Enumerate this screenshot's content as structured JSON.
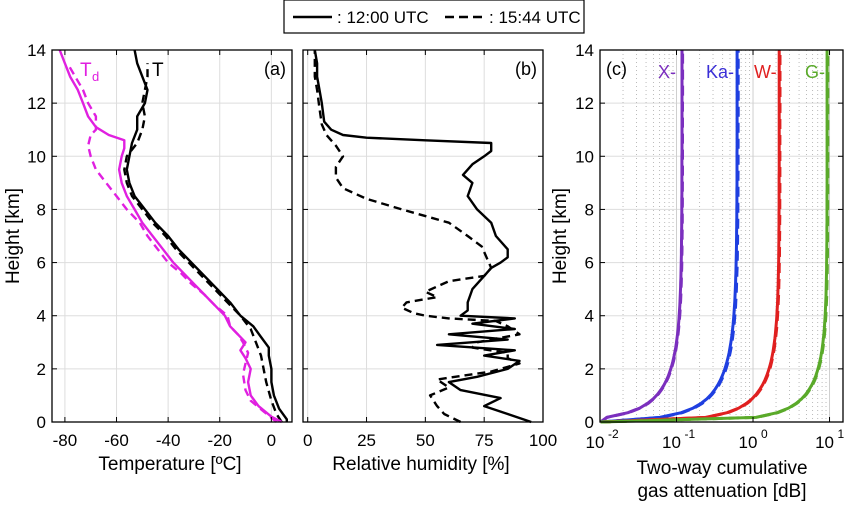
{
  "legend": {
    "solid_label": ": 12:00 UTC",
    "dashed_label": ": 15:44 UTC"
  },
  "chart_data": [
    {
      "type": "line",
      "panel_label": "(a)",
      "xlabel": "Temperature [ºC]",
      "ylabel": "Height [km]",
      "xlim": [
        -85,
        8
      ],
      "ylim": [
        0,
        14
      ],
      "x_ticks": [
        -80,
        -60,
        -40,
        -20,
        0
      ],
      "x_tick_labels": [
        "-80",
        "-60",
        "-40",
        "-20",
        "0"
      ],
      "y_ticks": [
        0,
        2,
        4,
        6,
        8,
        10,
        12,
        14
      ],
      "y_tick_labels": [
        "0",
        "2",
        "4",
        "6",
        "8",
        "10",
        "12",
        "14"
      ],
      "grid": true,
      "annotations": [
        {
          "label": "T",
          "subscript": "d",
          "color": "#e020e0"
        },
        {
          "label": "T",
          "subscript": "",
          "color": "#000000"
        }
      ],
      "series": [
        {
          "color": "#000000",
          "style": "solid",
          "points": [
            [
              6,
              0
            ],
            [
              6,
              0.1
            ],
            [
              3,
              0.5
            ],
            [
              1,
              1
            ],
            [
              0,
              1.5
            ],
            [
              0,
              2
            ],
            [
              -1,
              2.5
            ],
            [
              -1,
              2.8
            ],
            [
              -4,
              3.2
            ],
            [
              -7,
              3.6
            ],
            [
              -12,
              4
            ],
            [
              -16,
              4.5
            ],
            [
              -21,
              5
            ],
            [
              -26,
              5.5
            ],
            [
              -31,
              6
            ],
            [
              -36,
              6.5
            ],
            [
              -40,
              7
            ],
            [
              -45,
              7.5
            ],
            [
              -49,
              8
            ],
            [
              -53,
              8.5
            ],
            [
              -55,
              9
            ],
            [
              -56,
              9.5
            ],
            [
              -55,
              10
            ],
            [
              -54,
              10.5
            ],
            [
              -52,
              11
            ],
            [
              -52,
              11.5
            ],
            [
              -49,
              12
            ],
            [
              -48,
              12.5
            ],
            [
              -50,
              13
            ],
            [
              -52,
              13.5
            ],
            [
              -53,
              14
            ]
          ]
        },
        {
          "color": "#000000",
          "style": "dashed",
          "points": [
            [
              4,
              0
            ],
            [
              2,
              0.3
            ],
            [
              0,
              0.8
            ],
            [
              -2,
              1.5
            ],
            [
              -3,
              2
            ],
            [
              -4,
              2.5
            ],
            [
              -6,
              3
            ],
            [
              -8,
              3.5
            ],
            [
              -12,
              4
            ],
            [
              -17,
              4.5
            ],
            [
              -22,
              5
            ],
            [
              -27,
              5.5
            ],
            [
              -32,
              6
            ],
            [
              -37,
              6.5
            ],
            [
              -41,
              7
            ],
            [
              -46,
              7.5
            ],
            [
              -50,
              8
            ],
            [
              -54,
              8.5
            ],
            [
              -56,
              9
            ],
            [
              -57,
              9.5
            ],
            [
              -56,
              10
            ],
            [
              -52,
              10.5
            ],
            [
              -50,
              11
            ],
            [
              -49,
              11.5
            ],
            [
              -50,
              12
            ],
            [
              -49,
              12.5
            ],
            [
              -48,
              13
            ],
            [
              -48,
              13.5
            ]
          ]
        },
        {
          "color": "#e020e0",
          "style": "solid",
          "points": [
            [
              4,
              0
            ],
            [
              0,
              0.2
            ],
            [
              -5,
              0.6
            ],
            [
              -8,
              1
            ],
            [
              -9,
              1.5
            ],
            [
              -8,
              2
            ],
            [
              -10,
              2.4
            ],
            [
              -12,
              2.7
            ],
            [
              -10,
              3
            ],
            [
              -13,
              3.3
            ],
            [
              -16,
              3.6
            ],
            [
              -18,
              4
            ],
            [
              -22,
              4.4
            ],
            [
              -26,
              4.8
            ],
            [
              -30,
              5.2
            ],
            [
              -34,
              5.6
            ],
            [
              -38,
              6
            ],
            [
              -42,
              6.5
            ],
            [
              -46,
              7
            ],
            [
              -50,
              7.5
            ],
            [
              -53,
              8
            ],
            [
              -56,
              8.5
            ],
            [
              -58,
              9
            ],
            [
              -59,
              9.5
            ],
            [
              -58,
              10
            ],
            [
              -57,
              10.3
            ],
            [
              -57,
              10.6
            ],
            [
              -63,
              10.8
            ],
            [
              -68,
              11.1
            ],
            [
              -71,
              11.5
            ],
            [
              -73,
              12
            ],
            [
              -75,
              12.5
            ],
            [
              -78,
              13
            ],
            [
              -80,
              13.5
            ],
            [
              -82,
              14
            ]
          ]
        },
        {
          "color": "#e020e0",
          "style": "dashed",
          "points": [
            [
              2,
              0
            ],
            [
              -3,
              0.4
            ],
            [
              -8,
              0.8
            ],
            [
              -10,
              1.2
            ],
            [
              -11,
              1.8
            ],
            [
              -10,
              2.2
            ],
            [
              -9,
              2.6
            ],
            [
              -11,
              3
            ],
            [
              -13,
              3.3
            ],
            [
              -16,
              3.6
            ],
            [
              -17,
              4
            ],
            [
              -22,
              4.4
            ],
            [
              -26,
              4.8
            ],
            [
              -31,
              5.2
            ],
            [
              -35,
              5.6
            ],
            [
              -40,
              6
            ],
            [
              -44,
              6.5
            ],
            [
              -48,
              7
            ],
            [
              -51,
              7.5
            ],
            [
              -56,
              8
            ],
            [
              -60,
              8.5
            ],
            [
              -64,
              9
            ],
            [
              -68,
              9.5
            ],
            [
              -70,
              10
            ],
            [
              -71,
              10.4
            ],
            [
              -70,
              10.8
            ],
            [
              -68,
              11
            ],
            [
              -68,
              11.5
            ],
            [
              -71,
              12
            ],
            [
              -73,
              12.5
            ],
            [
              -76,
              13
            ],
            [
              -79,
              13.5
            ]
          ]
        }
      ]
    },
    {
      "type": "line",
      "panel_label": "(b)",
      "xlabel": "Relative humidity [%]",
      "ylabel": "",
      "xlim": [
        -2,
        100
      ],
      "ylim": [
        0,
        14
      ],
      "x_ticks": [
        0,
        25,
        50,
        75,
        100
      ],
      "x_tick_labels": [
        "0",
        "25",
        "50",
        "75",
        "100"
      ],
      "y_ticks": [
        0,
        2,
        4,
        6,
        8,
        10,
        12,
        14
      ],
      "grid": true,
      "series": [
        {
          "color": "#000000",
          "style": "solid",
          "points": [
            [
              95,
              0
            ],
            [
              85,
              0.3
            ],
            [
              75,
              0.6
            ],
            [
              82,
              0.9
            ],
            [
              65,
              1.2
            ],
            [
              60,
              1.5
            ],
            [
              72,
              1.7
            ],
            [
              85,
              2
            ],
            [
              90,
              2.3
            ],
            [
              75,
              2.5
            ],
            [
              88,
              2.7
            ],
            [
              55,
              2.9
            ],
            [
              85,
              3.1
            ],
            [
              60,
              3.3
            ],
            [
              88,
              3.5
            ],
            [
              70,
              3.7
            ],
            [
              88,
              3.9
            ],
            [
              65,
              4
            ],
            [
              68,
              4.2
            ],
            [
              68,
              4.5
            ],
            [
              70,
              5
            ],
            [
              75,
              5.5
            ],
            [
              78,
              5.8
            ],
            [
              82,
              6
            ],
            [
              85,
              6.2
            ],
            [
              85,
              6.5
            ],
            [
              80,
              7
            ],
            [
              78,
              7.5
            ],
            [
              72,
              8
            ],
            [
              68,
              8.5
            ],
            [
              70,
              9
            ],
            [
              66,
              9.3
            ],
            [
              70,
              9.7
            ],
            [
              75,
              10
            ],
            [
              78,
              10.2
            ],
            [
              78,
              10.5
            ],
            [
              50,
              10.6
            ],
            [
              25,
              10.7
            ],
            [
              15,
              10.8
            ],
            [
              10,
              11
            ],
            [
              7,
              11.3
            ],
            [
              6,
              12
            ],
            [
              5,
              12.5
            ],
            [
              4,
              13
            ],
            [
              4,
              13.5
            ],
            [
              3,
              14
            ]
          ]
        },
        {
          "color": "#000000",
          "style": "dashed",
          "points": [
            [
              65,
              0
            ],
            [
              58,
              0.3
            ],
            [
              55,
              0.6
            ],
            [
              52,
              1
            ],
            [
              60,
              1.3
            ],
            [
              55,
              1.6
            ],
            [
              78,
              1.9
            ],
            [
              90,
              2.2
            ],
            [
              85,
              2.4
            ],
            [
              85,
              2.6
            ],
            [
              70,
              2.8
            ],
            [
              72,
              3
            ],
            [
              90,
              3.3
            ],
            [
              85,
              3.6
            ],
            [
              80,
              3.8
            ],
            [
              60,
              3.9
            ],
            [
              50,
              4
            ],
            [
              45,
              4.1
            ],
            [
              40,
              4.3
            ],
            [
              42,
              4.5
            ],
            [
              55,
              4.7
            ],
            [
              50,
              4.9
            ],
            [
              55,
              5.1
            ],
            [
              60,
              5.3
            ],
            [
              75,
              5.5
            ],
            [
              78,
              5.8
            ],
            [
              76,
              6.2
            ],
            [
              74,
              6.6
            ],
            [
              68,
              7
            ],
            [
              60,
              7.5
            ],
            [
              40,
              8
            ],
            [
              25,
              8.4
            ],
            [
              15,
              8.8
            ],
            [
              12,
              9.2
            ],
            [
              12,
              9.6
            ],
            [
              15,
              10
            ],
            [
              12,
              10.4
            ],
            [
              8,
              10.8
            ],
            [
              6,
              11.2
            ],
            [
              5,
              11.8
            ],
            [
              4,
              12.5
            ],
            [
              3,
              13
            ],
            [
              3,
              13.5
            ],
            [
              3,
              14
            ]
          ]
        }
      ]
    },
    {
      "type": "line",
      "panel_label": "(c)",
      "xlabel": "Two-way cumulative",
      "xlabel_line2": "gas attenuation [dB]",
      "ylabel": "Height [km]",
      "x_scale": "log",
      "xlim": [
        0.01,
        15
      ],
      "ylim": [
        0,
        14
      ],
      "x_ticks": [
        0.01,
        0.1,
        1,
        10
      ],
      "x_tick_bases": [
        "10",
        "10",
        "10",
        "10"
      ],
      "x_tick_exponents": [
        "-2",
        "-1",
        "0",
        "1"
      ],
      "y_ticks": [
        0,
        2,
        4,
        6,
        8,
        10,
        12,
        14
      ],
      "y_tick_labels": [
        "0",
        "2",
        "4",
        "6",
        "8",
        "10",
        "12",
        "14"
      ],
      "grid": true,
      "band_labels": [
        {
          "label": "X-",
          "color": "#7b2fbe"
        },
        {
          "label": "Ka-",
          "color": "#3a2fd6"
        },
        {
          "label": "W-",
          "color": "#e02020"
        },
        {
          "label": "G-",
          "color": "#5aaa2a"
        }
      ],
      "series": [
        {
          "name": "X-",
          "color": "#7b2fbe",
          "style": "solid",
          "total": 0.118,
          "scale": 1.6
        },
        {
          "name": "X-",
          "color": "#7b2fbe",
          "style": "dashed",
          "total": 0.12,
          "scale": 1.6
        },
        {
          "name": "Ka-",
          "color": "#1f3fe0",
          "style": "solid",
          "total": 0.62,
          "scale": 1.7
        },
        {
          "name": "Ka-",
          "color": "#1f3fe0",
          "style": "dashed",
          "total": 0.64,
          "scale": 1.7
        },
        {
          "name": "W-",
          "color": "#e02020",
          "style": "solid",
          "total": 2.2,
          "scale": 1.5
        },
        {
          "name": "W-",
          "color": "#e02020",
          "style": "dashed",
          "total": 2.25,
          "scale": 1.5
        },
        {
          "name": "G-",
          "color": "#5aaa2a",
          "style": "solid",
          "total": 9.3,
          "scale": 1.4
        },
        {
          "name": "G-",
          "color": "#5aaa2a",
          "style": "dashed",
          "total": 9.5,
          "scale": 1.4
        }
      ]
    }
  ]
}
